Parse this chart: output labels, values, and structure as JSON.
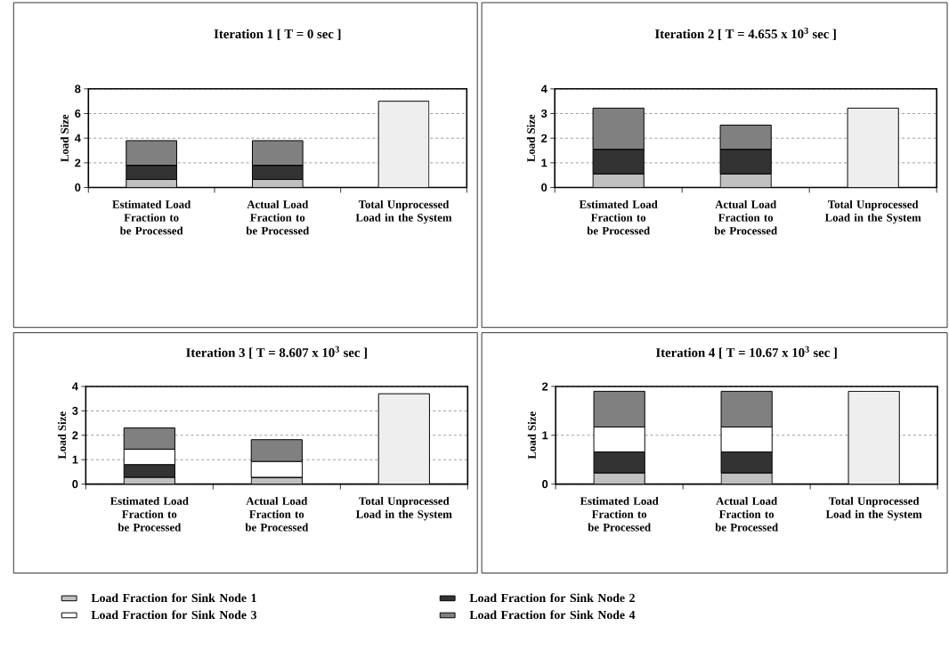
{
  "chart_data": [
    {
      "type": "bar",
      "stacked": true,
      "grid": "y",
      "title": "Iteration 1 [ T = 0 sec ]",
      "ylabel": "Load Size",
      "categories": [
        "Estimated Load Fraction to be Processed",
        "Actual Load Fraction to be Processed",
        "Total Unprocessed Load in the System"
      ],
      "ylim": [
        0,
        8
      ],
      "yticks": [
        0,
        2,
        4,
        6,
        8
      ],
      "series": [
        {
          "color": "#c0c0c0",
          "values": [
            0.65,
            0.65,
            null
          ]
        },
        {
          "color": "#333333",
          "values": [
            1.15,
            1.15,
            null
          ]
        },
        {
          "color": "#ffffff",
          "values": [
            0,
            0,
            null
          ]
        },
        {
          "color": "#808080",
          "values": [
            2.0,
            2.0,
            null
          ]
        },
        {
          "color": "#eeeeee",
          "values": [
            null,
            null,
            7.0
          ]
        }
      ]
    },
    {
      "type": "bar",
      "stacked": true,
      "grid": "y",
      "title": "Iteration 2 [ T = 4.655 x 10$^{3}$ sec ]",
      "ylabel": "Load Size",
      "categories": [
        "Estimated Load Fraction to be Processed",
        "Actual Load Fraction to be Processed",
        "Total Unprocessed Load in the System"
      ],
      "ylim": [
        0,
        4
      ],
      "yticks": [
        0,
        1,
        2,
        3,
        4
      ],
      "series": [
        {
          "color": "#c0c0c0",
          "values": [
            0.55,
            0.55,
            null
          ]
        },
        {
          "color": "#333333",
          "values": [
            1.0,
            1.0,
            null
          ]
        },
        {
          "color": "#ffffff",
          "values": [
            0,
            0,
            null
          ]
        },
        {
          "color": "#808080",
          "values": [
            1.67,
            0.98,
            null
          ]
        },
        {
          "color": "#eeeeee",
          "values": [
            null,
            null,
            3.22
          ]
        }
      ]
    },
    {
      "type": "bar",
      "stacked": true,
      "grid": "y",
      "title": "Iteration 3 [ T = 8.607 x 10$^{3}$ sec ]",
      "ylabel": "Load Size",
      "categories": [
        "Estimated Load Fraction to be Processed",
        "Actual Load Fraction to be Processed",
        "Total Unprocessed Load in the System"
      ],
      "ylim": [
        0,
        4
      ],
      "yticks": [
        0,
        1,
        2,
        3,
        4
      ],
      "series": [
        {
          "color": "#c0c0c0",
          "values": [
            0.28,
            0.28,
            null
          ]
        },
        {
          "color": "#333333",
          "values": [
            0.52,
            0,
            null
          ]
        },
        {
          "color": "#ffffff",
          "values": [
            0.63,
            0.65,
            null
          ]
        },
        {
          "color": "#808080",
          "values": [
            0.87,
            0.89,
            null
          ]
        },
        {
          "color": "#eeeeee",
          "values": [
            null,
            null,
            3.7
          ]
        }
      ]
    },
    {
      "type": "bar",
      "stacked": true,
      "grid": "y",
      "title": "Iteration 4 [ T = 10.67 x 10$^{3}$ sec ]",
      "ylabel": "Load Size",
      "legend": "bottom",
      "categories": [
        "Estimated Load Fraction to be Processed",
        "Actual Load Fraction to be Processed",
        "Total Unprocessed Load in the System"
      ],
      "ylim": [
        0,
        2
      ],
      "yticks": [
        0,
        1,
        2
      ],
      "series": [
        {
          "name": "Load Fraction for Sink Node 1",
          "color": "#c0c0c0",
          "values": [
            0.23,
            0.23,
            null
          ]
        },
        {
          "name": "Load Fraction for Sink Node 2",
          "color": "#333333",
          "values": [
            0.43,
            0.43,
            null
          ]
        },
        {
          "name": "Load Fraction for Sink Node 3",
          "color": "#ffffff",
          "values": [
            0.51,
            0.51,
            null
          ]
        },
        {
          "name": "Load Fraction for Sink Node 4",
          "color": "#808080",
          "values": [
            0.73,
            0.73,
            null
          ]
        },
        {
          "color": "#eeeeee",
          "values": [
            null,
            null,
            1.9
          ]
        }
      ]
    }
  ]
}
